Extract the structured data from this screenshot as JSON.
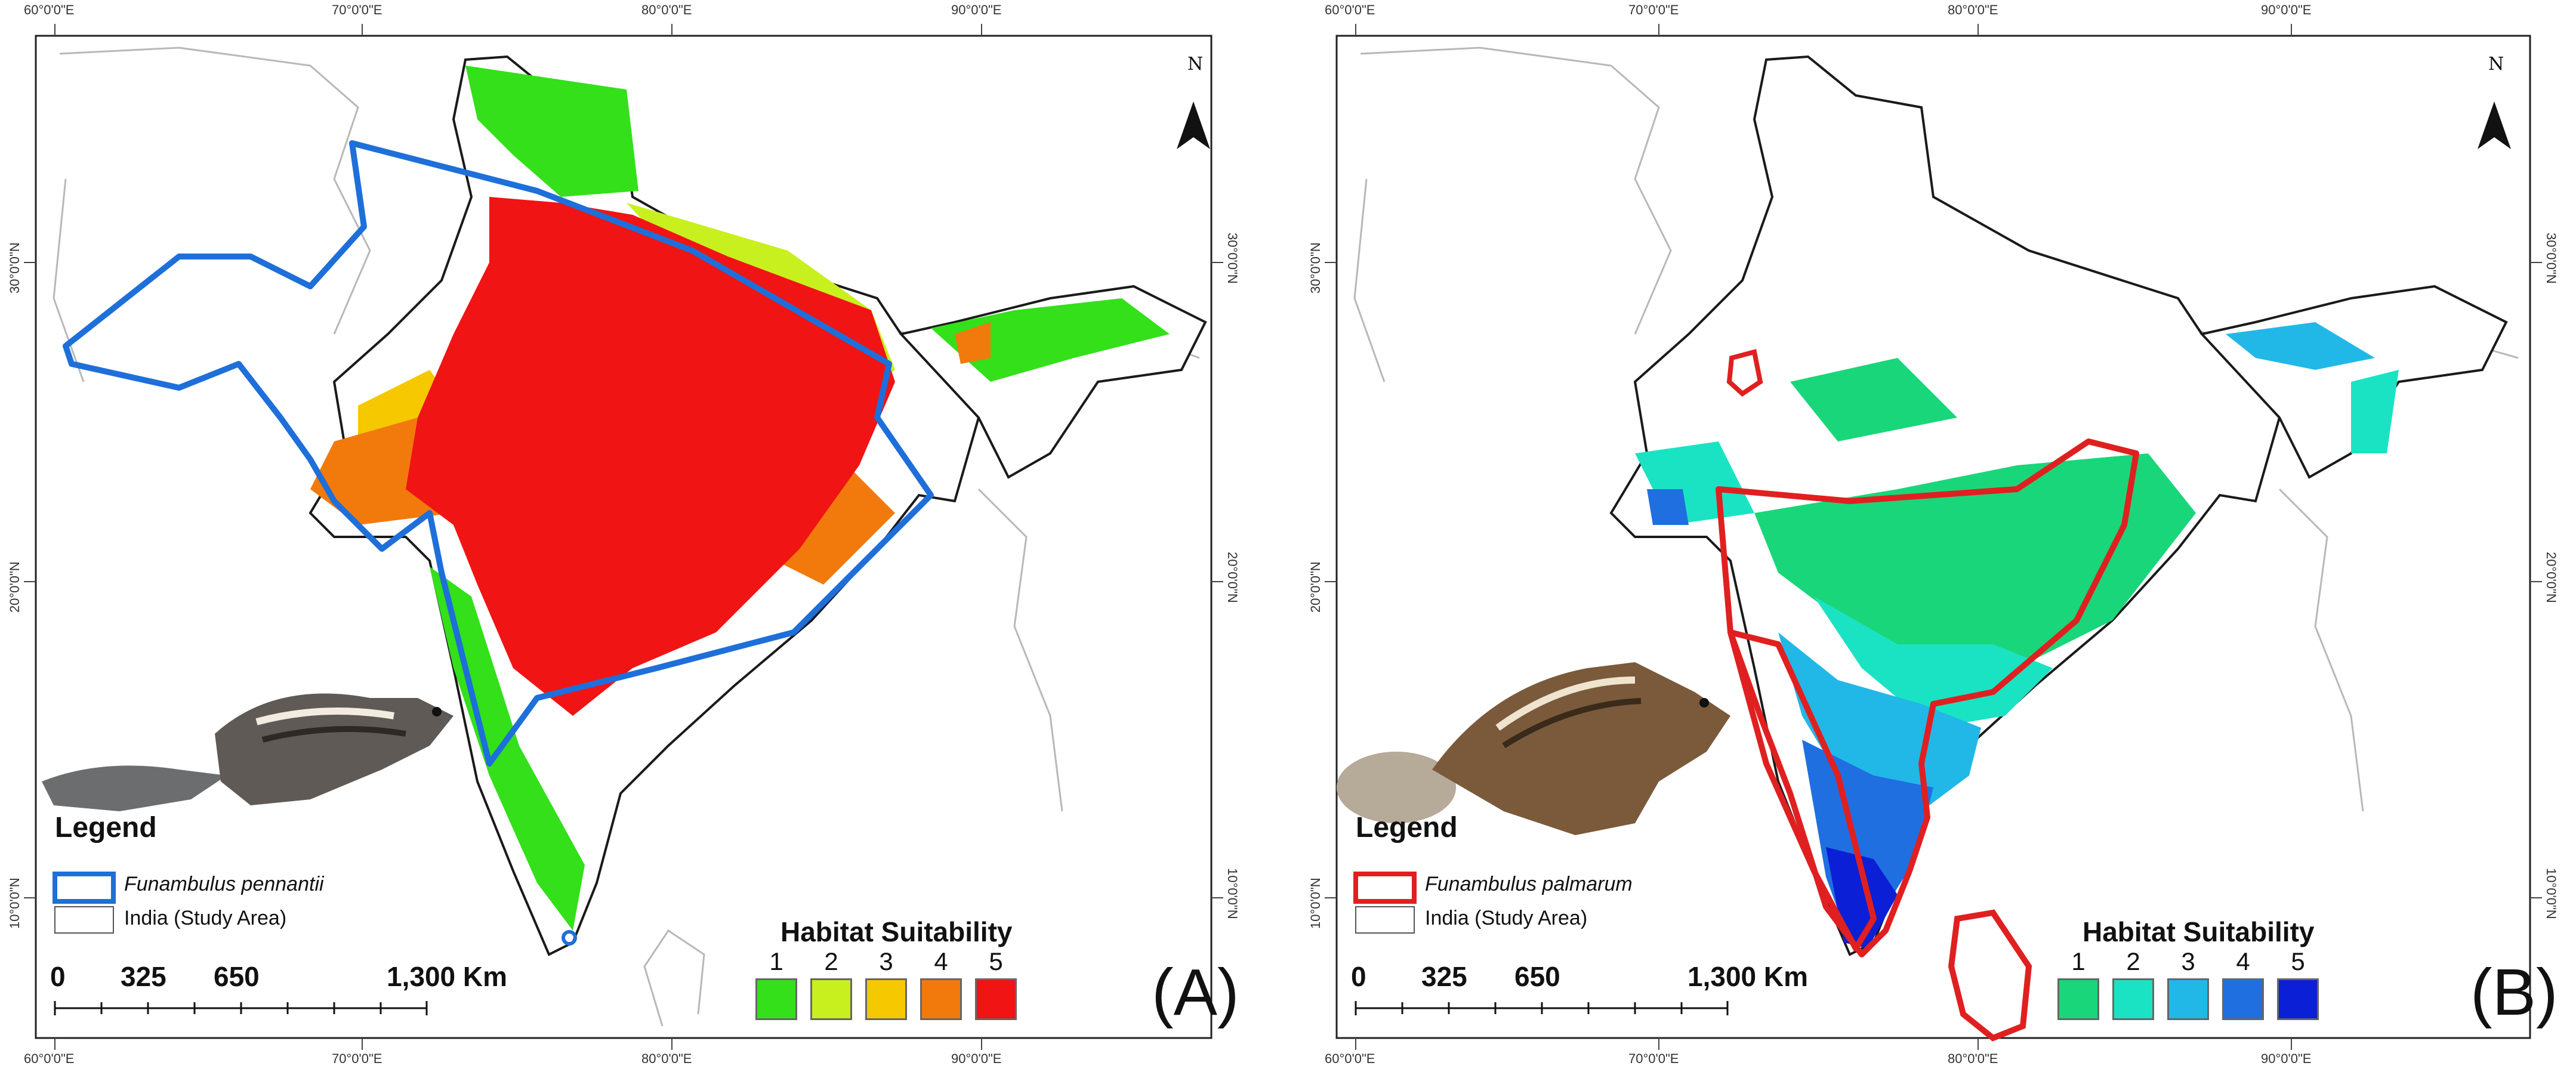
{
  "coord_labels": {
    "lon": [
      "60°0'0\"E",
      "70°0'0\"E",
      "80°0'0\"E",
      "90°0'0\"E"
    ],
    "lat": [
      "30°0'0\"N",
      "20°0'0\"N",
      "10°0'0\"N"
    ]
  },
  "north_arrow": "N",
  "scale_bar": {
    "ticks": [
      "0",
      "325",
      "650",
      "1,300 Km"
    ]
  },
  "habitat_suitability": {
    "title": "Habitat Suitability",
    "classes": [
      "1",
      "2",
      "3",
      "4",
      "5"
    ]
  },
  "panel_a": {
    "tag": "(A)",
    "legend_title": "Legend",
    "species": "Funambulus pennantii",
    "study_area": "India (Study Area)",
    "range_color": "#1e6fd9",
    "class_colors": [
      "#33e01a",
      "#c8f01e",
      "#f5c800",
      "#f27a0c",
      "#f01414"
    ]
  },
  "panel_b": {
    "tag": "(B)",
    "legend_title": "Legend",
    "species": "Funambulus palmarum",
    "study_area": "India (Study Area)",
    "range_color": "#e02020",
    "class_colors": [
      "#1ad67a",
      "#1ae3c4",
      "#21b8e8",
      "#1f6fe0",
      "#0a1fd6"
    ]
  }
}
